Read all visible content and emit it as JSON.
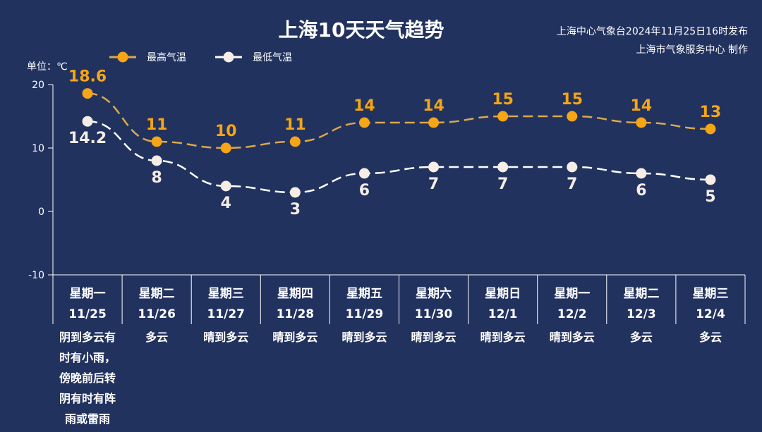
{
  "chart_data": {
    "type": "line",
    "title": "上海10天天气趋势",
    "source_lines": [
      "上海中心气象台2024年11月25日16时发布",
      "上海市气象服务中心 制作"
    ],
    "unit_label": "单位：℃",
    "ylim": [
      -10,
      20
    ],
    "yticks": [
      20,
      10,
      0,
      -10
    ],
    "grid": false,
    "legend_position": "top-left",
    "categories": [
      {
        "weekday": "星期一",
        "date": "11/25",
        "weather": [
          "阴到多云有",
          "时有小雨，",
          "傍晚前后转",
          "阴有时有阵",
          "雨或雷雨"
        ]
      },
      {
        "weekday": "星期二",
        "date": "11/26",
        "weather": [
          "多云"
        ]
      },
      {
        "weekday": "星期三",
        "date": "11/27",
        "weather": [
          "晴到多云"
        ]
      },
      {
        "weekday": "星期四",
        "date": "11/28",
        "weather": [
          "晴到多云"
        ]
      },
      {
        "weekday": "星期五",
        "date": "11/29",
        "weather": [
          "晴到多云"
        ]
      },
      {
        "weekday": "星期六",
        "date": "11/30",
        "weather": [
          "晴到多云"
        ]
      },
      {
        "weekday": "星期日",
        "date": "12/1",
        "weather": [
          "晴到多云"
        ]
      },
      {
        "weekday": "星期一",
        "date": "12/2",
        "weather": [
          "晴到多云"
        ]
      },
      {
        "weekday": "星期二",
        "date": "12/3",
        "weather": [
          "多云"
        ]
      },
      {
        "weekday": "星期三",
        "date": "12/4",
        "weather": [
          "多云"
        ]
      }
    ],
    "series": [
      {
        "name": "最高气温",
        "color": "#f5a515",
        "line_color": "#d9a94a",
        "values": [
          18.6,
          11,
          10,
          11,
          14,
          14,
          15,
          15,
          14,
          13
        ],
        "labels": [
          "18.6",
          "11",
          "10",
          "11",
          "14",
          "14",
          "15",
          "15",
          "14",
          "13"
        ]
      },
      {
        "name": "最低气温",
        "color": "#f5ede6",
        "line_color": "#ffffff",
        "values": [
          14.2,
          8,
          4,
          3,
          6,
          7,
          7,
          7,
          6,
          5
        ],
        "labels": [
          "14.2",
          "8",
          "4",
          "3",
          "6",
          "7",
          "7",
          "7",
          "6",
          "5"
        ]
      }
    ]
  }
}
